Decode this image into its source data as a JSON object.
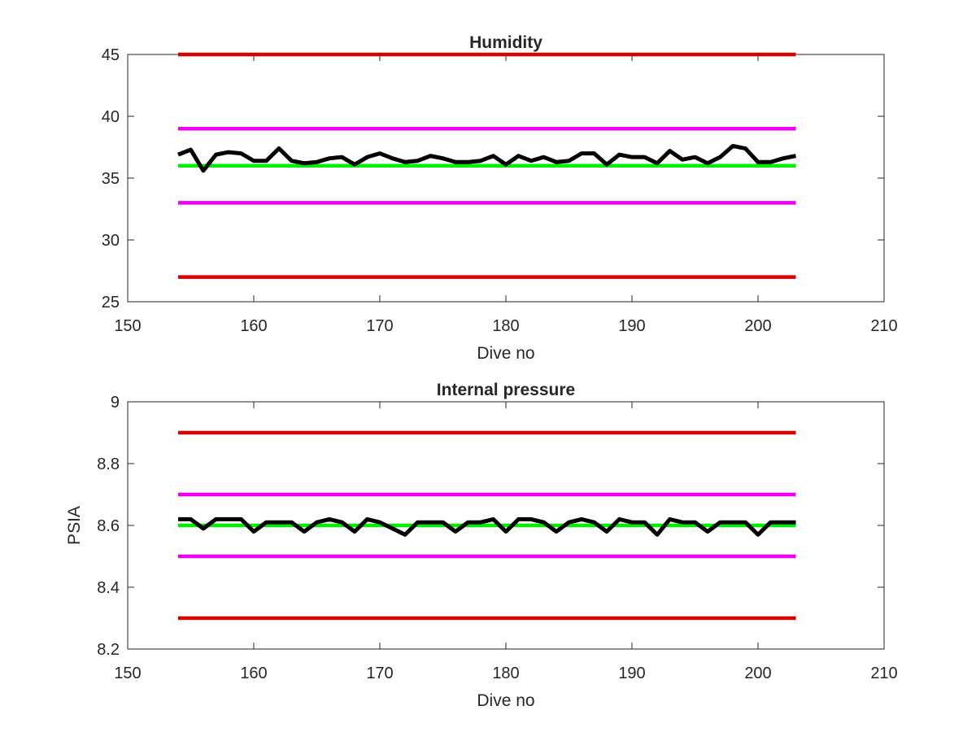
{
  "colors": {
    "limit_outer": "#dd0000",
    "limit_inner": "#ee00ee",
    "target": "#00ee00",
    "measured": "#000000",
    "axes": "#262626"
  },
  "chart_data": [
    {
      "type": "line",
      "title": "Humidity",
      "xlabel": "Dive no",
      "ylabel": "",
      "xlim": [
        150,
        210
      ],
      "ylim": [
        25,
        45
      ],
      "xticks": [
        150,
        160,
        170,
        180,
        190,
        200,
        210
      ],
      "yticks": [
        25,
        30,
        35,
        40,
        45
      ],
      "grid": false,
      "series": [
        {
          "role": "limit_outer",
          "x": [
            154,
            203
          ],
          "values": [
            45,
            45
          ]
        },
        {
          "role": "limit_inner",
          "x": [
            154,
            203
          ],
          "values": [
            39,
            39
          ]
        },
        {
          "role": "target",
          "x": [
            154,
            203
          ],
          "values": [
            36,
            36
          ]
        },
        {
          "role": "limit_inner",
          "x": [
            154,
            203
          ],
          "values": [
            33,
            33
          ]
        },
        {
          "role": "limit_outer",
          "x": [
            154,
            203
          ],
          "values": [
            27,
            27
          ]
        },
        {
          "role": "measured",
          "x": [
            154,
            155,
            156,
            157,
            158,
            159,
            160,
            161,
            162,
            163,
            164,
            165,
            166,
            167,
            168,
            169,
            170,
            171,
            172,
            173,
            174,
            175,
            176,
            177,
            178,
            179,
            180,
            181,
            182,
            183,
            184,
            185,
            186,
            187,
            188,
            189,
            190,
            191,
            192,
            193,
            194,
            195,
            196,
            197,
            198,
            199,
            200,
            201,
            202,
            203
          ],
          "values": [
            36.9,
            37.3,
            35.6,
            36.9,
            37.1,
            37.0,
            36.4,
            36.4,
            37.4,
            36.4,
            36.2,
            36.3,
            36.6,
            36.7,
            36.1,
            36.7,
            37.0,
            36.6,
            36.3,
            36.4,
            36.8,
            36.6,
            36.3,
            36.3,
            36.4,
            36.8,
            36.1,
            36.8,
            36.4,
            36.7,
            36.3,
            36.4,
            37.0,
            37.0,
            36.1,
            36.9,
            36.7,
            36.7,
            36.2,
            37.2,
            36.5,
            36.7,
            36.2,
            36.7,
            37.6,
            37.4,
            36.3,
            36.3,
            36.6,
            36.8
          ]
        }
      ]
    },
    {
      "type": "line",
      "title": "Internal pressure",
      "xlabel": "Dive no",
      "ylabel": "PSIA",
      "xlim": [
        150,
        210
      ],
      "ylim": [
        8.2,
        9
      ],
      "xticks": [
        150,
        160,
        170,
        180,
        190,
        200,
        210
      ],
      "yticks": [
        8.2,
        8.4,
        8.6,
        8.8,
        9
      ],
      "grid": false,
      "series": [
        {
          "role": "limit_outer",
          "x": [
            154,
            203
          ],
          "values": [
            8.9,
            8.9
          ]
        },
        {
          "role": "limit_inner",
          "x": [
            154,
            203
          ],
          "values": [
            8.7,
            8.7
          ]
        },
        {
          "role": "target",
          "x": [
            154,
            203
          ],
          "values": [
            8.6,
            8.6
          ]
        },
        {
          "role": "limit_inner",
          "x": [
            154,
            203
          ],
          "values": [
            8.5,
            8.5
          ]
        },
        {
          "role": "limit_outer",
          "x": [
            154,
            203
          ],
          "values": [
            8.3,
            8.3
          ]
        },
        {
          "role": "measured",
          "x": [
            154,
            155,
            156,
            157,
            158,
            159,
            160,
            161,
            162,
            163,
            164,
            165,
            166,
            167,
            168,
            169,
            170,
            171,
            172,
            173,
            174,
            175,
            176,
            177,
            178,
            179,
            180,
            181,
            182,
            183,
            184,
            185,
            186,
            187,
            188,
            189,
            190,
            191,
            192,
            193,
            194,
            195,
            196,
            197,
            198,
            199,
            200,
            201,
            202,
            203
          ],
          "values": [
            8.62,
            8.62,
            8.59,
            8.62,
            8.62,
            8.62,
            8.58,
            8.61,
            8.61,
            8.61,
            8.58,
            8.61,
            8.62,
            8.61,
            8.58,
            8.62,
            8.61,
            8.59,
            8.57,
            8.61,
            8.61,
            8.61,
            8.58,
            8.61,
            8.61,
            8.62,
            8.58,
            8.62,
            8.62,
            8.61,
            8.58,
            8.61,
            8.62,
            8.61,
            8.58,
            8.62,
            8.61,
            8.61,
            8.57,
            8.62,
            8.61,
            8.61,
            8.58,
            8.61,
            8.61,
            8.61,
            8.57,
            8.61,
            8.61,
            8.61
          ]
        }
      ]
    }
  ]
}
